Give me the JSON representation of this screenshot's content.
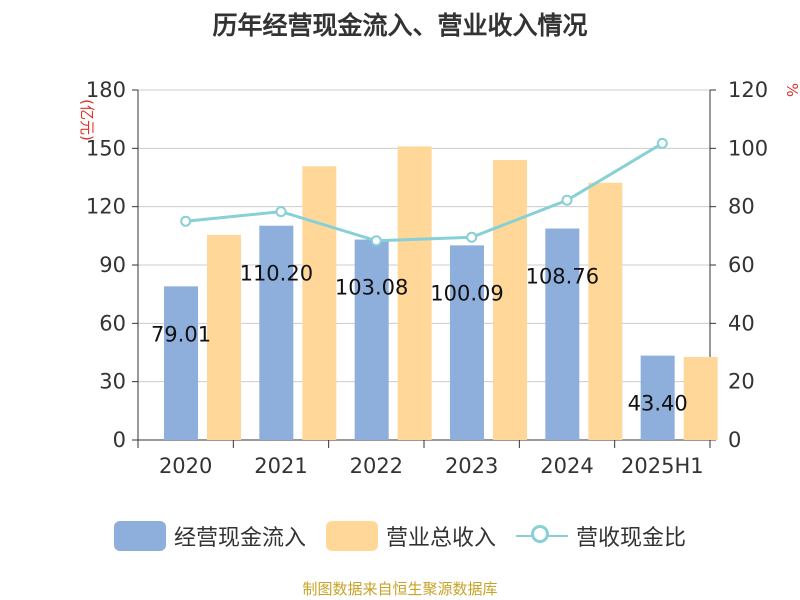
{
  "title": "历年经营现金流入、营业收入情况",
  "source": "制图数据来自恒生聚源数据库",
  "colors": {
    "cash_inflow": "#8eaedb",
    "revenue": "#ffd899",
    "ratio": "#86d0d6",
    "unit": "#e0312b",
    "source": "#c9a227"
  },
  "legend": {
    "cash_inflow": "经营现金流入",
    "revenue": "营业总收入",
    "ratio": "营收现金比"
  },
  "chart_data": {
    "type": "bar",
    "title": "历年经营现金流入、营业收入情况",
    "categories": [
      "2020",
      "2021",
      "2022",
      "2023",
      "2024",
      "2025H1"
    ],
    "left_axis": {
      "unit": "(亿元)",
      "ylim": [
        0,
        180
      ],
      "ticks": [
        "0",
        "30",
        "60",
        "90",
        "120",
        "150",
        "180"
      ]
    },
    "right_axis": {
      "unit": "%",
      "ylim": [
        0,
        120
      ],
      "ticks": [
        "0",
        "20",
        "40",
        "60",
        "80",
        "100",
        "120"
      ]
    },
    "series": [
      {
        "name": "经营现金流入",
        "type": "bar",
        "axis": "left",
        "values": [
          79.01,
          110.2,
          103.08,
          100.09,
          108.76,
          43.4
        ],
        "labels": [
          "79.01",
          "110.20",
          "103.08",
          "100.09",
          "108.76",
          "43.40"
        ]
      },
      {
        "name": "营业总收入",
        "type": "bar",
        "axis": "left",
        "values": [
          105.5,
          140.8,
          151.0,
          144.0,
          132.3,
          42.7
        ]
      },
      {
        "name": "营收现金比",
        "type": "line",
        "axis": "right",
        "values": [
          75.0,
          78.3,
          68.3,
          69.5,
          82.2,
          101.7
        ]
      }
    ],
    "grid": true,
    "legend_position": "bottom"
  }
}
